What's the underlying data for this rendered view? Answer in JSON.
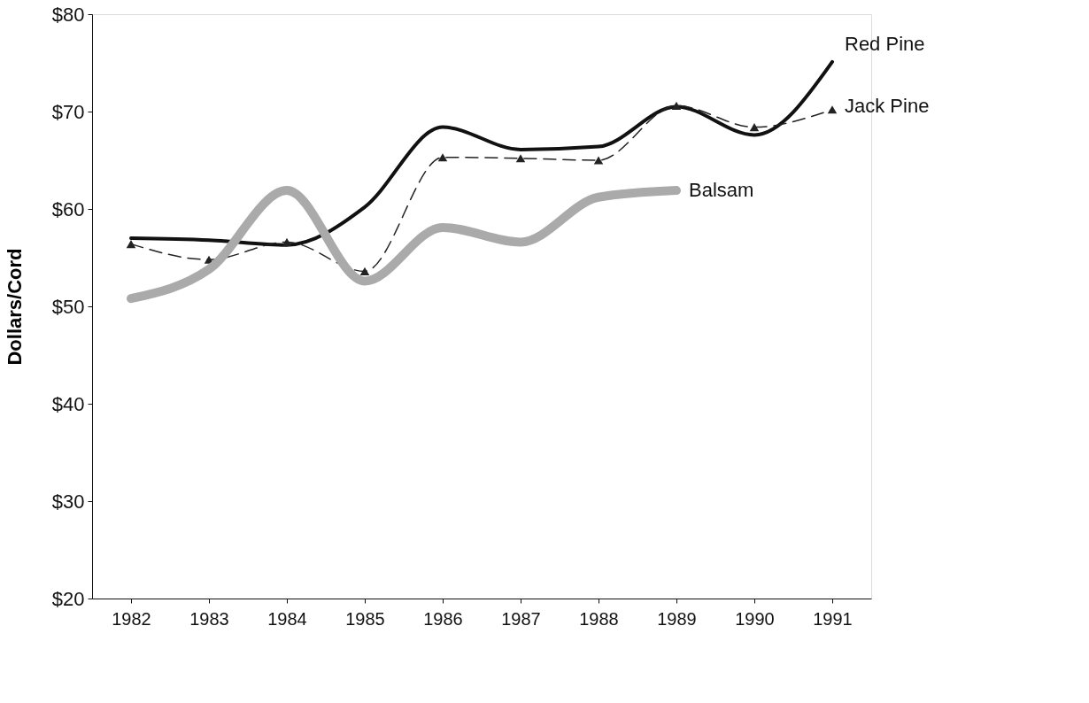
{
  "chart_data": {
    "type": "line",
    "ylabel": "Dollars/Cord",
    "x": [
      1982,
      1983,
      1984,
      1985,
      1986,
      1987,
      1988,
      1989,
      1990,
      1991
    ],
    "xlim": [
      1981.5,
      1991.5
    ],
    "xticks": [
      1982,
      1983,
      1984,
      1985,
      1986,
      1987,
      1988,
      1989,
      1990,
      1991
    ],
    "ylim": [
      20,
      80
    ],
    "yticks": [
      {
        "value": 20,
        "label": "$20"
      },
      {
        "value": 30,
        "label": "$30"
      },
      {
        "value": 40,
        "label": "$40"
      },
      {
        "value": 50,
        "label": "$50"
      },
      {
        "value": 60,
        "label": "$60"
      },
      {
        "value": 70,
        "label": "$70"
      },
      {
        "value": 80,
        "label": "$80"
      }
    ],
    "grid": false,
    "legend": false,
    "series": [
      {
        "name": "Red Pine",
        "color": "#111111",
        "line_style": "solid",
        "marker": "none",
        "values": [
          57.0,
          56.8,
          56.3,
          60.2,
          68.4,
          66.1,
          66.4,
          70.5,
          67.6,
          75.1
        ]
      },
      {
        "name": "Jack Pine",
        "color": "#222222",
        "line_style": "dashed",
        "marker": "triangle",
        "values": [
          56.4,
          54.8,
          56.6,
          53.6,
          65.3,
          65.2,
          65.0,
          70.6,
          68.4,
          70.2
        ]
      },
      {
        "name": "Balsam",
        "color": "#aaaaaa",
        "line_style": "solid",
        "marker": "none",
        "values": [
          50.8,
          53.8,
          61.9,
          52.6,
          58.1,
          56.6,
          61.2,
          61.9,
          null,
          null
        ]
      }
    ]
  }
}
